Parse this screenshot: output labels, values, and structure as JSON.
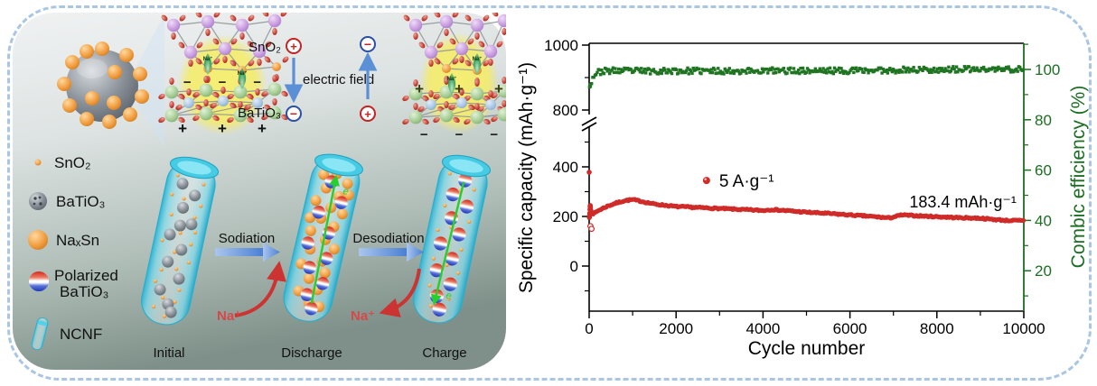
{
  "frame": {
    "border_color": "#a9c6e4"
  },
  "left_panel": {
    "bg_top": "#f0f2f2",
    "bg_bottom": "#7e9089",
    "struct": {
      "sno2": "SnO₂",
      "batio3": "BaTiO₃",
      "efield": "electric field",
      "plus": "+",
      "minus": "−",
      "minus_row": "−  −  −",
      "plus_row": "+  +  +",
      "na": "Na⁺"
    },
    "process": {
      "sodiation": "Sodiation",
      "desodiation": "Desodiation",
      "na": "Na⁺",
      "electron": "e"
    },
    "stages": {
      "initial": "Initial",
      "discharge": "Discharge",
      "charge": "Charge"
    },
    "legend": [
      {
        "label": "SnO₂"
      },
      {
        "label": "BaTiO₃"
      },
      {
        "label": "NaₓSn"
      },
      {
        "label": "Polarized",
        "label2": "BaTiO₃"
      },
      {
        "label": "NCNF"
      }
    ]
  },
  "chart_data": {
    "type": "scatter",
    "title": "",
    "xlabel": "Cycle number",
    "ylabel_left": "Specific capacity (mAh·g⁻¹)",
    "ylabel_right": "Combic efficiency (%)",
    "x_range": [
      0,
      10000
    ],
    "x_ticks": [
      0,
      2000,
      4000,
      6000,
      8000,
      10000
    ],
    "x_minor": [
      1000,
      3000,
      5000,
      7000,
      9000
    ],
    "left_axis": {
      "ticks": [
        0,
        200,
        400,
        800,
        1000
      ],
      "minor": [
        -100,
        100,
        300,
        500,
        900
      ],
      "break_between": [
        500,
        800
      ],
      "color": "#000000"
    },
    "right_axis": {
      "ticks": [
        20,
        40,
        60,
        80,
        100
      ],
      "minor": [
        10,
        30,
        50,
        70,
        90,
        110
      ],
      "color": "#1b6e22"
    },
    "grid": false,
    "series": [
      {
        "name": "Specific capacity",
        "axis": "left",
        "color": "#cf2b28",
        "marker": "circle",
        "noise": 3,
        "anchors": [
          [
            1,
            378
          ],
          [
            6,
            196
          ],
          [
            10,
            204
          ],
          [
            14,
            213
          ],
          [
            18,
            228
          ],
          [
            22,
            240
          ],
          [
            26,
            244
          ],
          [
            30,
            236
          ],
          [
            36,
            226
          ],
          [
            42,
            220
          ],
          [
            50,
            217
          ],
          [
            60,
            218
          ],
          [
            100,
            210
          ],
          [
            200,
            223
          ],
          [
            400,
            240
          ],
          [
            600,
            253
          ],
          [
            800,
            263
          ],
          [
            1000,
            268
          ],
          [
            1200,
            261
          ],
          [
            1500,
            250
          ],
          [
            2000,
            240
          ],
          [
            2500,
            236
          ],
          [
            3000,
            232
          ],
          [
            3500,
            228
          ],
          [
            4000,
            224
          ],
          [
            4200,
            228
          ],
          [
            4500,
            224
          ],
          [
            5000,
            217
          ],
          [
            5500,
            212
          ],
          [
            6000,
            206
          ],
          [
            6500,
            200
          ],
          [
            6900,
            194
          ],
          [
            7200,
            206
          ],
          [
            7500,
            203
          ],
          [
            8000,
            199
          ],
          [
            8500,
            195
          ],
          [
            9000,
            193
          ],
          [
            9300,
            188
          ],
          [
            9600,
            184
          ],
          [
            10000,
            183
          ]
        ],
        "open_points": [
          [
            30,
            161
          ],
          [
            55,
            150
          ]
        ]
      },
      {
        "name": "Coulombic efficiency",
        "axis": "right",
        "color": "#1e7420",
        "marker": "square",
        "noise": 1.2,
        "anchors": [
          [
            1,
            41
          ],
          [
            8,
            93
          ],
          [
            25,
            94
          ],
          [
            80,
            96.5
          ],
          [
            150,
            98.6
          ],
          [
            300,
            99.3
          ],
          [
            600,
            99.5
          ],
          [
            1500,
            99.4
          ],
          [
            3000,
            99.4
          ],
          [
            4500,
            99.5
          ],
          [
            6000,
            99.5
          ],
          [
            7500,
            99.9
          ],
          [
            9000,
            100.0
          ],
          [
            10000,
            100.1
          ]
        ]
      }
    ],
    "annotations": [
      {
        "text": "5 A·g⁻¹",
        "x": 2700,
        "value": 345,
        "marker": true
      },
      {
        "text": "183.4 mAh·g⁻¹",
        "x": 8600,
        "value": 258,
        "marker": false
      }
    ],
    "final_capacity_label": "183.4 mAh·g⁻¹",
    "rate_label": "5 A·g⁻¹"
  }
}
